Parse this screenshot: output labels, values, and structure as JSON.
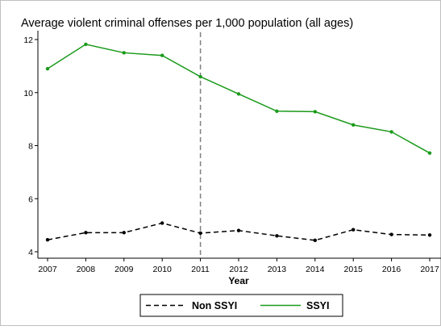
{
  "chart_data": {
    "type": "line",
    "title": "Average violent criminal offenses per 1,000 population (all ages)",
    "xlabel": "Year",
    "ylabel": "",
    "x": [
      2007,
      2008,
      2009,
      2010,
      2011,
      2012,
      2013,
      2014,
      2015,
      2016,
      2017
    ],
    "x_tick_labels": [
      "2007",
      "2008",
      "2009",
      "2010",
      "2011",
      "2012",
      "2013",
      "2014",
      "2015",
      "2016",
      "2017"
    ],
    "ylim": [
      4,
      12
    ],
    "y_ticks": [
      4,
      6,
      8,
      10,
      12
    ],
    "y_tick_labels": [
      "4",
      "6",
      "8",
      "10",
      "12"
    ],
    "series": [
      {
        "name": "SSYI",
        "color": "#1a9a1a",
        "style": "solid",
        "values": [
          10.9,
          11.82,
          11.5,
          11.4,
          10.6,
          9.95,
          9.3,
          9.28,
          8.78,
          8.52,
          7.72
        ]
      },
      {
        "name": "Non SSYI",
        "color": "#000000",
        "style": "dashed",
        "values": [
          4.45,
          4.72,
          4.72,
          5.08,
          4.7,
          4.8,
          4.6,
          4.43,
          4.83,
          4.65,
          4.63
        ]
      }
    ],
    "reference_line": {
      "x": 2011,
      "color": "#808080",
      "style": "dashed"
    },
    "grid": false,
    "legend": {
      "position": "bottom",
      "items": [
        {
          "label": "Non SSYI",
          "series": "Non SSYI"
        },
        {
          "label": "SSYI",
          "series": "SSYI"
        }
      ]
    }
  }
}
